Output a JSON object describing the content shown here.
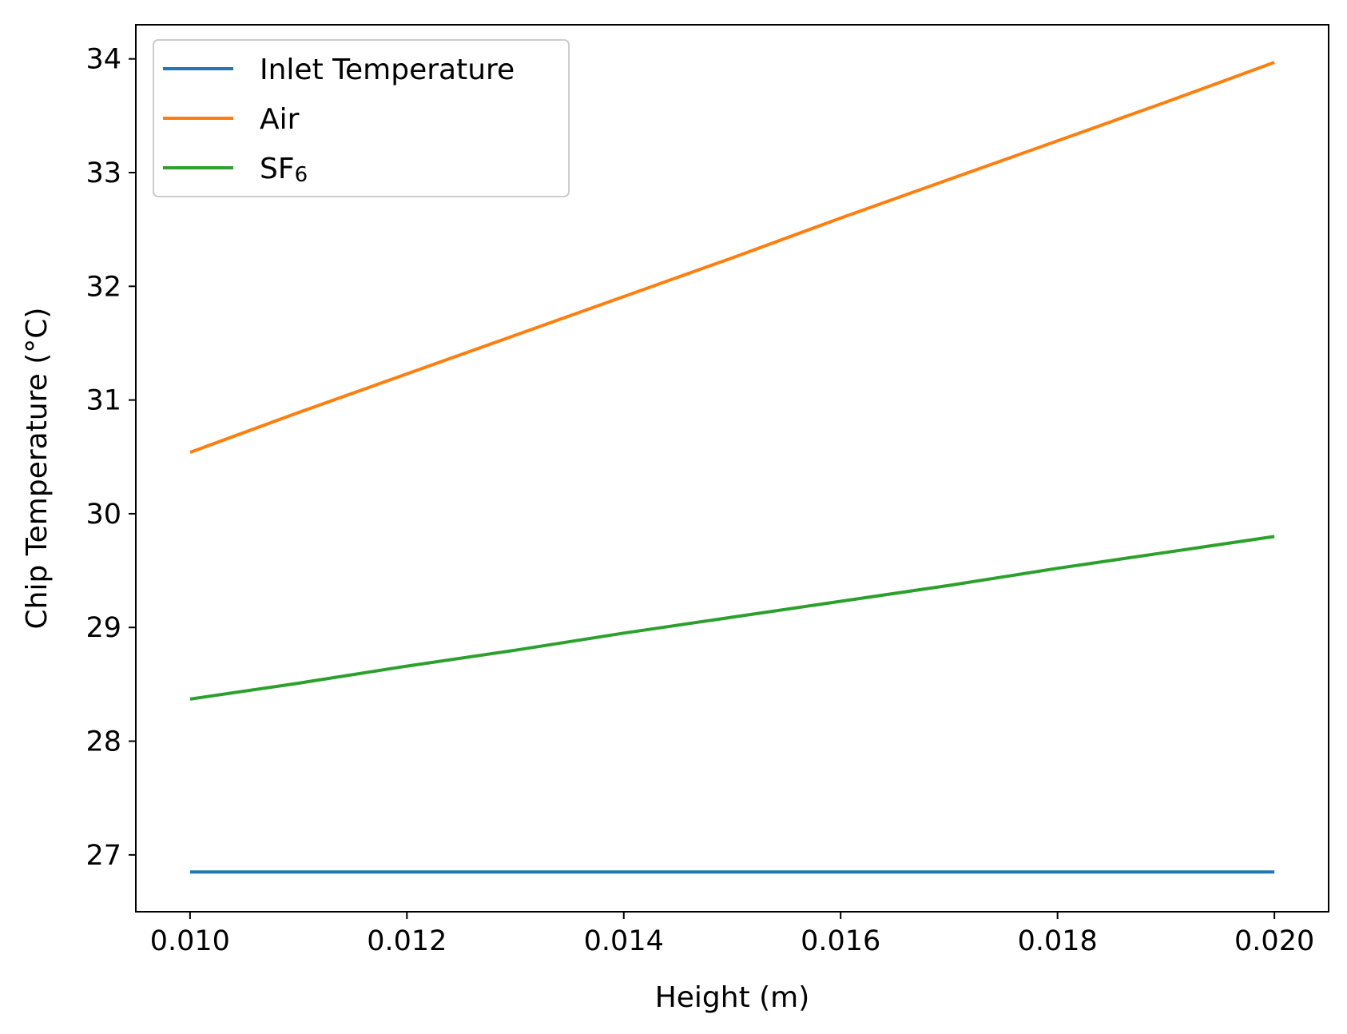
{
  "chart_data": {
    "type": "line",
    "title": "",
    "xlabel": "Height (m)",
    "ylabel": "Chip Temperature (°C)",
    "xlim": [
      0.0095,
      0.0205
    ],
    "ylim": [
      26.5,
      34.3
    ],
    "xticks": [
      "0.010",
      "0.012",
      "0.014",
      "0.016",
      "0.018",
      "0.020"
    ],
    "xtick_values": [
      0.01,
      0.012,
      0.014,
      0.016,
      0.018,
      0.02
    ],
    "yticks": [
      "27",
      "28",
      "29",
      "30",
      "31",
      "32",
      "33",
      "34"
    ],
    "ytick_values": [
      27,
      28,
      29,
      30,
      31,
      32,
      33,
      34
    ],
    "grid": false,
    "legend_position": "upper-left",
    "series": [
      {
        "name": "Inlet Temperature",
        "color": "#1f77b4",
        "x": [
          0.01,
          0.011,
          0.012,
          0.013,
          0.014,
          0.015,
          0.016,
          0.017,
          0.018,
          0.019,
          0.02
        ],
        "y": [
          26.85,
          26.85,
          26.85,
          26.85,
          26.85,
          26.85,
          26.85,
          26.85,
          26.85,
          26.85,
          26.85
        ]
      },
      {
        "name": "Air",
        "color": "#ff7f0e",
        "x": [
          0.01,
          0.011,
          0.012,
          0.013,
          0.014,
          0.015,
          0.016,
          0.017,
          0.018,
          0.019,
          0.02
        ],
        "y": [
          30.54,
          30.89,
          31.23,
          31.57,
          31.91,
          32.25,
          32.6,
          32.94,
          33.28,
          33.62,
          33.97
        ]
      },
      {
        "name": "SF",
        "name_subscript": "6",
        "color": "#2ca02c",
        "x": [
          0.01,
          0.011,
          0.012,
          0.013,
          0.014,
          0.015,
          0.016,
          0.017,
          0.018,
          0.019,
          0.02
        ],
        "y": [
          28.37,
          28.51,
          28.66,
          28.8,
          28.95,
          29.09,
          29.23,
          29.37,
          29.52,
          29.66,
          29.8
        ]
      }
    ]
  }
}
